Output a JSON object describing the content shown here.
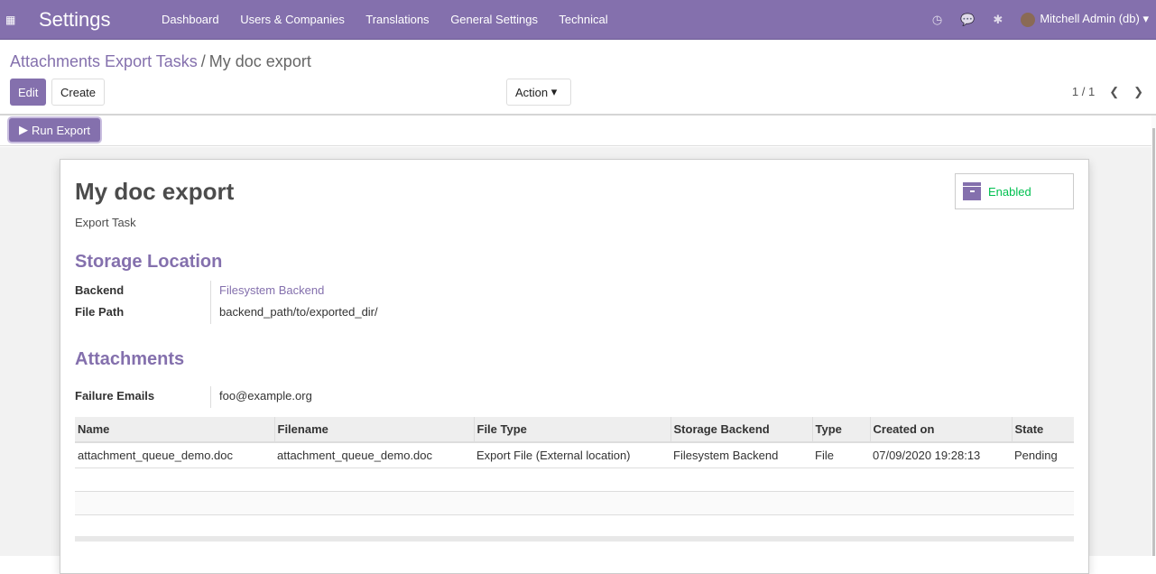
{
  "navbar": {
    "app_title": "Settings",
    "menu": [
      "Dashboard",
      "Users & Companies",
      "Translations",
      "General Settings",
      "Technical"
    ],
    "user": "Mitchell Admin (db)",
    "icons": [
      "clock-icon",
      "chat-icon",
      "bug-icon"
    ]
  },
  "breadcrumb": {
    "parent": "Attachments Export Tasks",
    "separator": "/",
    "current": "My doc export"
  },
  "buttons": {
    "edit": "Edit",
    "create": "Create",
    "action": "Action",
    "run_export": "Run Export"
  },
  "pager": {
    "value": "1 / 1"
  },
  "record": {
    "title": "My doc export",
    "subtitle": "Export Task",
    "active_toggle": "Enabled",
    "storage_section": "Storage Location",
    "backend_label": "Backend",
    "backend_value": "Filesystem Backend",
    "path_label": "File Path",
    "path_value": "backend_path/to/exported_dir/",
    "attachments_section": "Attachments",
    "emails_label": "Failure Emails",
    "emails_value": "foo@example.org"
  },
  "table": {
    "headers": [
      "Name",
      "Filename",
      "File Type",
      "Storage Backend",
      "Type",
      "Created on",
      "State"
    ],
    "rows": [
      [
        "attachment_queue_demo.doc",
        "attachment_queue_demo.doc",
        "Export File (External location)",
        "Filesystem Backend",
        "File",
        "07/09/2020 19:28:13",
        "Pending"
      ]
    ]
  },
  "colors": {
    "brand": "#8470ad",
    "enabled": "#00c050"
  }
}
